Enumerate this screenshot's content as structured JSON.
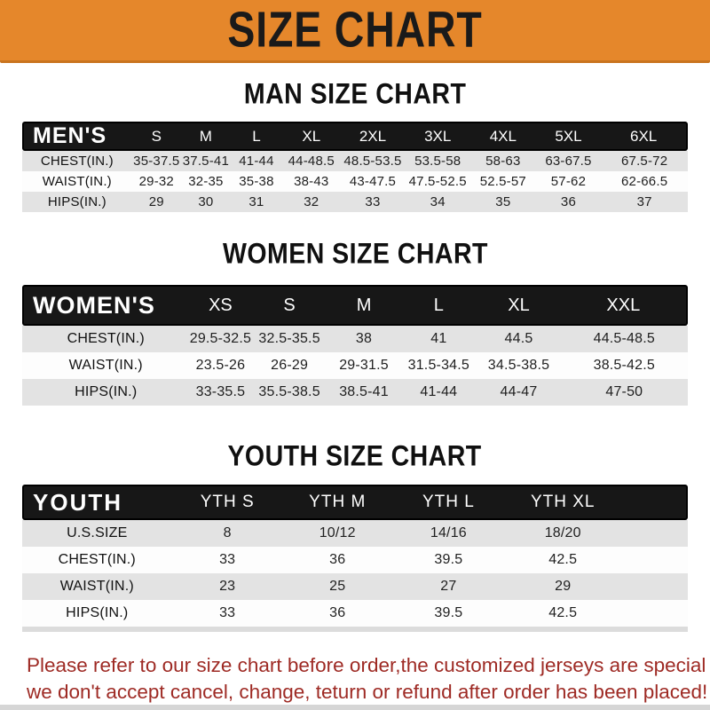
{
  "banner": {
    "title": "SIZE CHART"
  },
  "colors": {
    "banner_bg": "#E5872B",
    "header_bar": "#171717",
    "row_alt": "#E3E3E3",
    "notice_red": "#9E2A24"
  },
  "sections": [
    {
      "title": "MAN SIZE CHART",
      "header": {
        "label": "MEN'S",
        "columns": [
          "S",
          "M",
          "L",
          "XL",
          "2XL",
          "3XL",
          "4XL",
          "5XL",
          "6XL"
        ]
      },
      "rows": [
        {
          "label": "CHEST(IN.)",
          "values": [
            "35-37.5",
            "37.5-41",
            "41-44",
            "44-48.5",
            "48.5-53.5",
            "53.5-58",
            "58-63",
            "63-67.5",
            "67.5-72"
          ]
        },
        {
          "label": "WAIST(IN.)",
          "values": [
            "29-32",
            "32-35",
            "35-38",
            "38-43",
            "43-47.5",
            "47.5-52.5",
            "52.5-57",
            "57-62",
            "62-66.5"
          ]
        },
        {
          "label": "HIPS(IN.)",
          "values": [
            "29",
            "30",
            "31",
            "32",
            "33",
            "34",
            "35",
            "36",
            "37"
          ]
        }
      ]
    },
    {
      "title": "WOMEN SIZE CHART",
      "header": {
        "label": "WOMEN'S",
        "columns": [
          "XS",
          "S",
          "M",
          "L",
          "XL",
          "XXL"
        ]
      },
      "rows": [
        {
          "label": "CHEST(IN.)",
          "values": [
            "29.5-32.5",
            "32.5-35.5",
            "38",
            "41",
            "44.5",
            "44.5-48.5"
          ]
        },
        {
          "label": "WAIST(IN.)",
          "values": [
            "23.5-26",
            "26-29",
            "29-31.5",
            "31.5-34.5",
            "34.5-38.5",
            "38.5-42.5"
          ]
        },
        {
          "label": "HIPS(IN.)",
          "values": [
            "33-35.5",
            "35.5-38.5",
            "38.5-41",
            "41-44",
            "44-47",
            "47-50"
          ]
        }
      ]
    },
    {
      "title": "YOUTH SIZE CHART",
      "header": {
        "label": "YOUTH",
        "columns": [
          "YTH S",
          "YTH M",
          "YTH L",
          "YTH XL"
        ]
      },
      "rows": [
        {
          "label": "U.S.SIZE",
          "values": [
            "8",
            "10/12",
            "14/16",
            "18/20"
          ]
        },
        {
          "label": "CHEST(IN.)",
          "values": [
            "33",
            "36",
            "39.5",
            "42.5"
          ]
        },
        {
          "label": "WAIST(IN.)",
          "values": [
            "23",
            "25",
            "27",
            "29"
          ]
        },
        {
          "label": "HIPS(IN.)",
          "values": [
            "33",
            "36",
            "39.5",
            "42.5"
          ]
        }
      ]
    }
  ],
  "footer": {
    "lines": [
      "Please refer to our size chart before order,the customized jerseys are special products,",
      "we don't accept cancel, change, teturn or refund after order has been placed!"
    ]
  }
}
